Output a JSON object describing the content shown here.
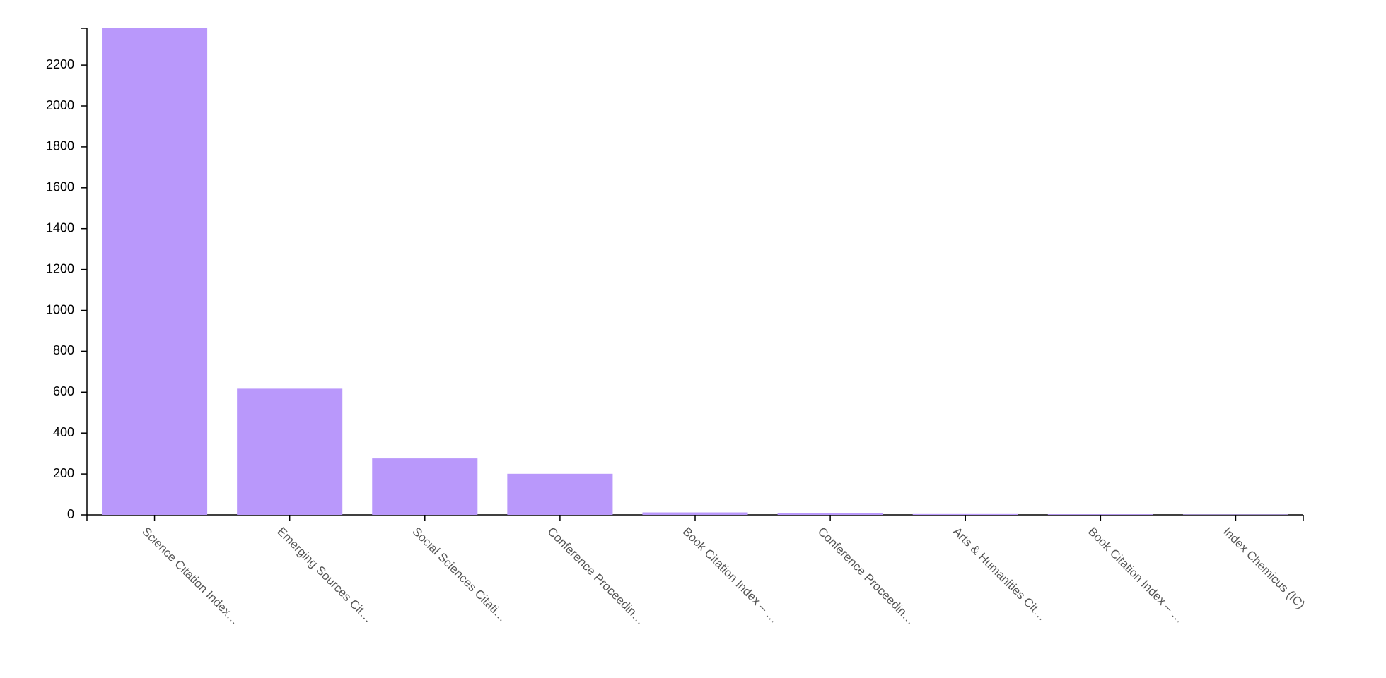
{
  "chart_data": {
    "type": "bar",
    "categories": [
      "Science Citation Index…",
      "Emerging Sources Cit…",
      "Social Sciences Citati…",
      "Conference Proceedin…",
      "Book Citation Index – …",
      "Conference Proceedin…",
      "Arts & Humanities Cit…",
      "Book Citation Index – …",
      "Index Chemicus (IC)"
    ],
    "values": [
      2380,
      617,
      276,
      201,
      12,
      8,
      4,
      3,
      2
    ],
    "color": "#b998fb",
    "ylim": [
      0,
      2380
    ],
    "yticks": [
      0,
      200,
      400,
      600,
      800,
      1000,
      1200,
      1400,
      1600,
      1800,
      2000,
      2200
    ]
  }
}
